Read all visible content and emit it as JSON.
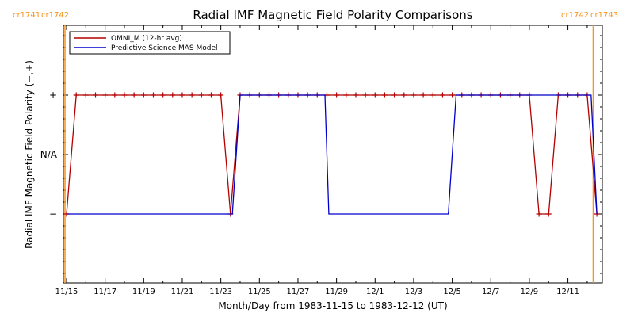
{
  "chart_data": {
    "type": "line",
    "title": "Radial IMF Magnetic Field Polarity Comparisons",
    "xlabel": "Month/Day from 1983-11-15 to 1983-12-12 (UT)",
    "ylabel": "Radial IMF Magnetic Field Polarity (−,+)",
    "x_tick_labels": [
      "11/15",
      "11/17",
      "11/19",
      "11/21",
      "11/23",
      "11/25",
      "11/27",
      "11/29",
      "12/1",
      "12/3",
      "12/5",
      "12/7",
      "12/9",
      "12/11"
    ],
    "y_tick_labels": [
      "+",
      "N/A",
      "−"
    ],
    "y_categories": [
      "−",
      "N/A",
      "+"
    ],
    "xlim_days": [
      0,
      27.5
    ],
    "grid": false,
    "legend_position": "top-left",
    "carrington_markers": [
      {
        "day": 0.0,
        "left_label": "cr1741",
        "right_label": "cr1742",
        "side": "left"
      },
      {
        "day": 27.3,
        "left_label": "cr1742",
        "right_label": "cr1743",
        "side": "right"
      }
    ],
    "series": [
      {
        "name": "OMNI_M (12-hr avg)",
        "color": "#b30000",
        "marker": "+",
        "points": [
          [
            0.0,
            -1
          ],
          [
            0.5,
            1
          ],
          [
            1.0,
            1
          ],
          [
            1.5,
            1
          ],
          [
            2.0,
            1
          ],
          [
            2.5,
            1
          ],
          [
            3.0,
            1
          ],
          [
            3.5,
            1
          ],
          [
            4.0,
            1
          ],
          [
            4.5,
            1
          ],
          [
            5.0,
            1
          ],
          [
            5.5,
            1
          ],
          [
            6.0,
            1
          ],
          [
            6.5,
            1
          ],
          [
            7.0,
            1
          ],
          [
            7.5,
            1
          ],
          [
            8.0,
            1
          ],
          [
            8.5,
            -1
          ],
          [
            9.0,
            1
          ],
          [
            9.5,
            1
          ],
          [
            10.0,
            1
          ],
          [
            10.5,
            1
          ],
          [
            11.0,
            1
          ],
          [
            11.5,
            1
          ],
          [
            12.0,
            1
          ],
          [
            12.5,
            1
          ],
          [
            13.0,
            1
          ],
          [
            13.5,
            1
          ],
          [
            14.0,
            1
          ],
          [
            14.5,
            1
          ],
          [
            15.0,
            1
          ],
          [
            15.5,
            1
          ],
          [
            16.0,
            1
          ],
          [
            16.5,
            1
          ],
          [
            17.0,
            1
          ],
          [
            17.5,
            1
          ],
          [
            18.0,
            1
          ],
          [
            18.5,
            1
          ],
          [
            19.0,
            1
          ],
          [
            19.5,
            1
          ],
          [
            20.0,
            1
          ],
          [
            20.5,
            1
          ],
          [
            21.0,
            1
          ],
          [
            21.5,
            1
          ],
          [
            22.0,
            1
          ],
          [
            22.5,
            1
          ],
          [
            23.0,
            1
          ],
          [
            23.5,
            1
          ],
          [
            24.0,
            1
          ],
          [
            24.5,
            -1
          ],
          [
            25.0,
            -1
          ],
          [
            25.5,
            1
          ],
          [
            26.0,
            1
          ],
          [
            26.5,
            1
          ],
          [
            27.0,
            1
          ],
          [
            27.5,
            -1
          ]
        ]
      },
      {
        "name": "Predictive Science MAS Model",
        "color": "#0000cc",
        "marker": "none",
        "points": [
          [
            0.0,
            -1
          ],
          [
            8.6,
            -1
          ],
          [
            9.0,
            1
          ],
          [
            13.4,
            1
          ],
          [
            13.6,
            -1
          ],
          [
            19.8,
            -1
          ],
          [
            20.2,
            1
          ],
          [
            27.2,
            1
          ],
          [
            27.5,
            -1
          ]
        ]
      }
    ]
  }
}
